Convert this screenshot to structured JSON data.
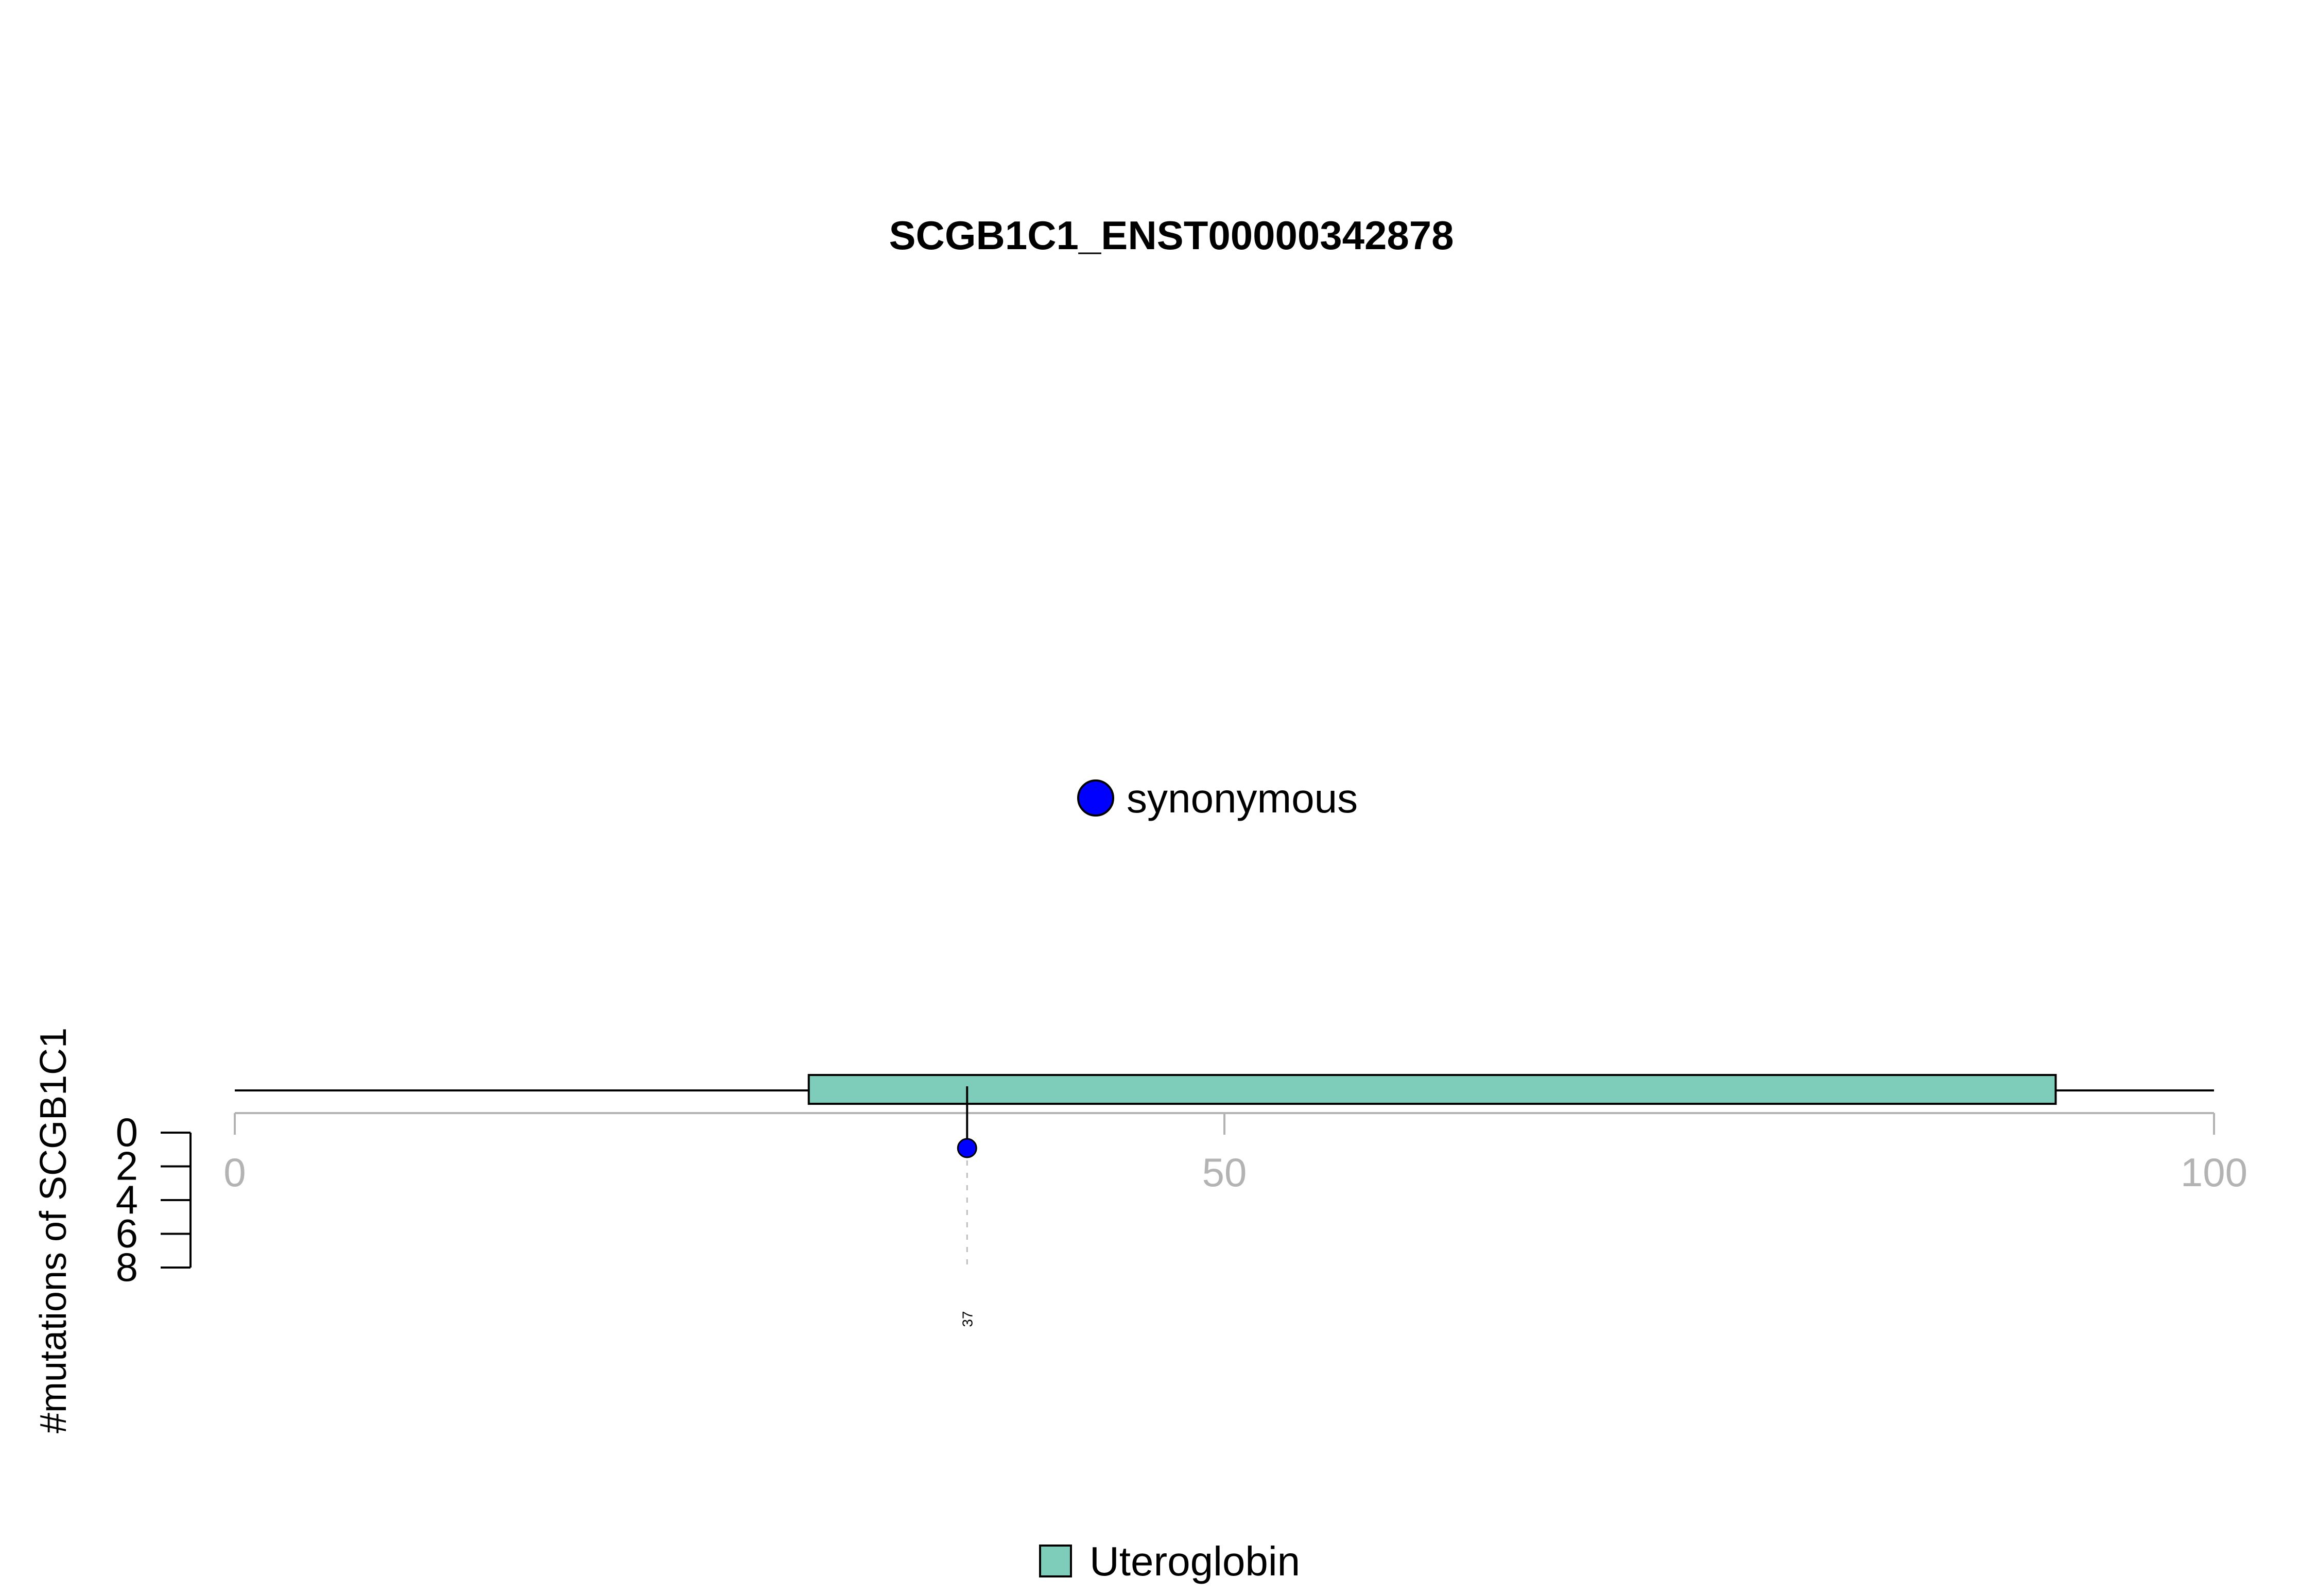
{
  "chart_data": {
    "type": "lollipop",
    "title": "SCGB1C1_ENST00000342878",
    "ylabel": "#mutations of SCGB1C1",
    "protein_length": 100,
    "x_axis": {
      "range": [
        0,
        100
      ],
      "ticks": [
        0,
        50,
        100
      ],
      "tick_labels": [
        "0",
        "50",
        "100"
      ]
    },
    "y_axis": {
      "range": [
        0,
        8
      ],
      "ticks": [
        0,
        2,
        4,
        6,
        8
      ],
      "tick_labels": [
        "0",
        "2",
        "4",
        "6",
        "8"
      ],
      "direction": "down"
    },
    "domains": [
      {
        "name": "Uteroglobin",
        "start": 29,
        "end": 92,
        "color": "#7ecdbb"
      }
    ],
    "mutations": [
      {
        "position": 37,
        "count": 1,
        "label": "37",
        "type": "synonymous",
        "color": "#0000ff"
      }
    ],
    "mutation_legend": [
      {
        "label": "synonymous",
        "color": "#0000ff"
      }
    ],
    "domain_legend": [
      {
        "label": "Uteroglobin",
        "color": "#7ecdbb"
      }
    ],
    "colors": {
      "axis_gray": "#b3b3b3",
      "line_black": "#000000",
      "guide_gray": "#bebebe"
    }
  }
}
